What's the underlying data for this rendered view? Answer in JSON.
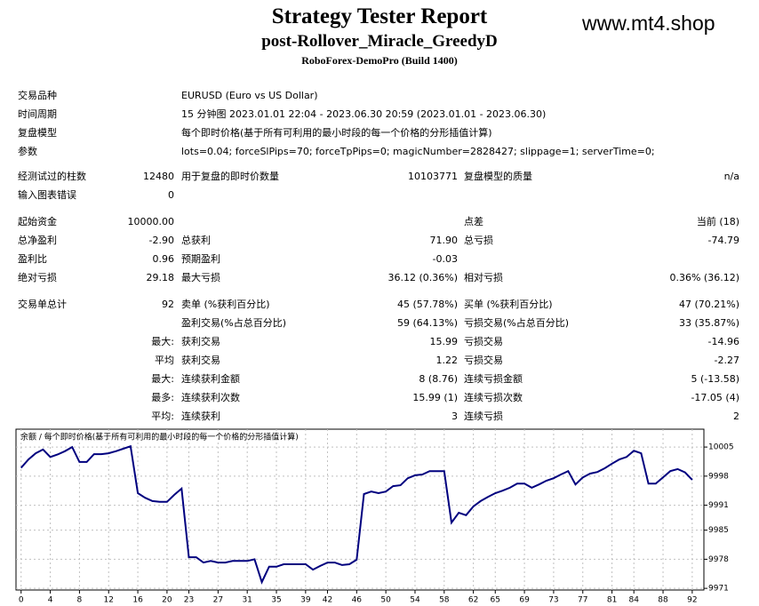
{
  "header": {
    "title": "Strategy Tester Report",
    "subtitle": "post-Rollover_Miracle_GreedyD",
    "broker": "RoboForex-DemoPro (Build 1400)",
    "watermark": "www.mt4.shop"
  },
  "info": [
    {
      "label": "交易品种",
      "value": "EURUSD (Euro vs US Dollar)"
    },
    {
      "label": "时间周期",
      "value": "15 分钟图 2023.01.01 22:04 - 2023.06.30 20:59 (2023.01.01 - 2023.06.30)"
    },
    {
      "label": "复盘模型",
      "value": "每个即时价格(基于所有可利用的最小时段的每一个价格的分形插值计算)"
    },
    {
      "label": "参数",
      "value": "lots=0.04; forceSlPips=70; forceTpPips=0; magicNumber=2828427; slippage=1; serverTime=0;"
    }
  ],
  "stats": [
    [
      "经测试过的柱数",
      "12480",
      "用于复盘的即时价数量",
      "10103771",
      "复盘模型的质量",
      "n/a"
    ],
    [
      "输入图表错误",
      "0",
      null,
      null,
      null,
      null
    ],
    [
      "起始资金",
      "10000.00",
      null,
      null,
      "点差",
      "当前 (18)"
    ],
    [
      "总净盈利",
      "-2.90",
      "总获利",
      "71.90",
      "总亏损",
      "-74.79"
    ],
    [
      "盈利比",
      "0.96",
      "预期盈利",
      "-0.03",
      null,
      null
    ],
    [
      "绝对亏损",
      "29.18",
      "最大亏损",
      "36.12 (0.36%)",
      "相对亏损",
      "0.36% (36.12)"
    ],
    [
      "交易单总计",
      "92",
      "卖单 (%获利百分比)",
      "45 (57.78%)",
      "买单 (%获利百分比)",
      "47 (70.21%)"
    ],
    [
      null,
      null,
      "盈利交易(%占总百分比)",
      "59 (64.13%)",
      "亏损交易(%占总百分比)",
      "33 (35.87%)"
    ],
    [
      null,
      "最大:",
      "获利交易",
      "15.99",
      "亏损交易",
      "-14.96"
    ],
    [
      null,
      "平均",
      "获利交易",
      "1.22",
      "亏损交易",
      "-2.27"
    ],
    [
      null,
      "最大:",
      "连续获利金额",
      "8 (8.76)",
      "连续亏损金额",
      "5 (-13.58)"
    ],
    [
      null,
      "最多:",
      "连续获利次数",
      "15.99 (1)",
      "连续亏损次数",
      "-17.05 (4)"
    ],
    [
      null,
      "平均:",
      "连续获利",
      "3",
      "连续亏损",
      "2"
    ]
  ],
  "chart_data": {
    "type": "line",
    "title": "余额 / 每个即时价格(基于所有可利用的最小时段的每一个价格的分形插值计算)",
    "color": "#00007f",
    "grid": true,
    "values": [
      10000,
      10002,
      10003.5,
      10004.4,
      10002.6,
      10003.2,
      10004,
      10005,
      10001.4,
      10001.4,
      10003.3,
      10003.3,
      10003.5,
      10004,
      10004.6,
      10005.2,
      9993.9,
      9992.8,
      9992,
      9991.8,
      9991.8,
      9993.5,
      9995,
      9978.5,
      9978.5,
      9977.2,
      9977.6,
      9977.2,
      9977.2,
      9977.6,
      9977.6,
      9977.6,
      9978,
      9972.5,
      9976.2,
      9976.2,
      9976.8,
      9976.8,
      9976.8,
      9976.8,
      9975.5,
      9976.4,
      9977.2,
      9977.2,
      9976.6,
      9976.8,
      9977.9,
      9993.7,
      9994.3,
      9993.9,
      9994.3,
      9995.6,
      9995.8,
      9997.5,
      9998.2,
      9998.4,
      9999.2,
      9999.2,
      9999.2,
      9986.8,
      9989.2,
      9988.6,
      9990.7,
      9992,
      9993,
      9993.9,
      9994.5,
      9995.2,
      9996.2,
      9996.2,
      9995.2,
      9996,
      9996.9,
      9997.5,
      9998.4,
      9999.2,
      9996,
      9997.7,
      9998.6,
      9999,
      9999.9,
      10001,
      10002,
      10002.6,
      10004.1,
      10003.5,
      9996.2,
      9996.2,
      9997.7,
      9999.2,
      9999.7,
      9998.9,
      9997.1
    ],
    "xlim": [
      -0.7,
      93.6
    ],
    "xticks": [
      0,
      4,
      8,
      12,
      16,
      20,
      23,
      27,
      31,
      35,
      39,
      42,
      46,
      50,
      54,
      58,
      62,
      65,
      69,
      73,
      77,
      81,
      84,
      88,
      92
    ],
    "ylim": [
      9970.6,
      10009.3
    ],
    "yticks": [
      10005,
      9998,
      9991,
      9985,
      9978,
      9971
    ]
  }
}
